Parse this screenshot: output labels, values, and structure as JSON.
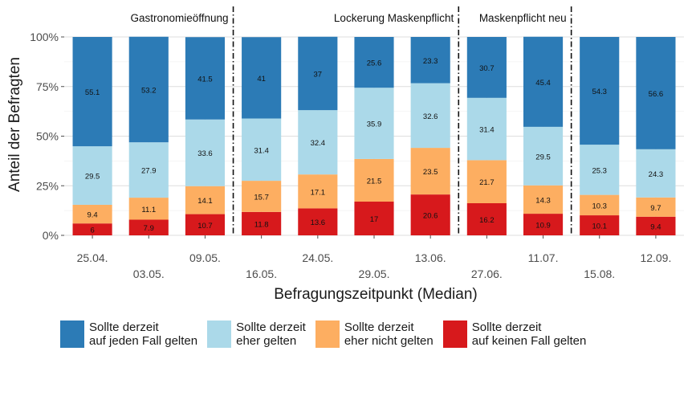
{
  "chart_data": {
    "type": "bar",
    "stacked": true,
    "percent": true,
    "xlabel": "Befragungszeitpunkt (Median)",
    "ylabel": "Anteil der Befragten",
    "ylim": [
      0,
      100
    ],
    "yticks": [
      "0%",
      "25%",
      "50%",
      "75%",
      "100%"
    ],
    "ytick_values": [
      0,
      25,
      50,
      75,
      100
    ],
    "categories": [
      "25.04.",
      "03.05.",
      "09.05.",
      "16.05.",
      "24.05.",
      "29.05.",
      "13.06.",
      "27.06.",
      "11.07.",
      "15.08.",
      "12.09."
    ],
    "series": [
      {
        "name": "Sollte derzeit\nauf keinen Fall gelten",
        "color": "#d7191c",
        "values": [
          6,
          7.9,
          10.7,
          11.8,
          13.6,
          17,
          20.6,
          16.2,
          10.9,
          10.1,
          9.4
        ]
      },
      {
        "name": "Sollte derzeit\neher nicht gelten",
        "color": "#fdae61",
        "values": [
          9.4,
          11.1,
          14.1,
          15.7,
          17.1,
          21.5,
          23.5,
          21.7,
          14.3,
          10.3,
          9.7
        ]
      },
      {
        "name": "Sollte derzeit\neher gelten",
        "color": "#abd9e9",
        "values": [
          29.5,
          27.9,
          33.6,
          31.4,
          32.4,
          35.9,
          32.6,
          31.4,
          29.5,
          25.3,
          24.3
        ]
      },
      {
        "name": "Sollte derzeit\nauf jeden Fall gelten",
        "color": "#2c7bb6",
        "values": [
          55.1,
          53.2,
          41.5,
          41,
          37,
          25.6,
          23.3,
          30.7,
          45.4,
          54.3,
          56.6
        ]
      }
    ],
    "legend_order": [
      3,
      2,
      1,
      0
    ],
    "legend_position": "bottom",
    "annotations": [
      {
        "label": "Gastronomieöffnung",
        "between": [
          2,
          3
        ]
      },
      {
        "label": "Lockerung Maskenpflicht",
        "between": [
          6,
          7
        ]
      },
      {
        "label": "Maskenpflicht neu",
        "between": [
          8,
          9
        ]
      }
    ],
    "grid": true
  }
}
